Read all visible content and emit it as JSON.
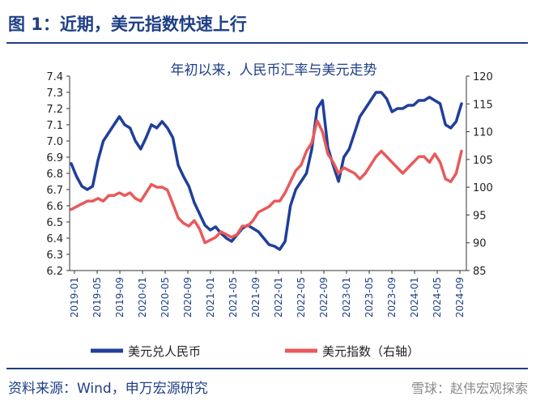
{
  "header": {
    "title": "图 1：近期，美元指数快速上行"
  },
  "footer": {
    "source": "资料来源：Wind，申万宏源研究",
    "watermark": "雪球：赵伟宏观探索"
  },
  "chart_data": {
    "type": "line",
    "title": "年初以来，人民币汇率与美元走势",
    "x_ticks": [
      "2019-01",
      "2019-05",
      "2019-09",
      "2020-01",
      "2020-05",
      "2020-09",
      "2021-01",
      "2021-05",
      "2021-09",
      "2022-01",
      "2022-05",
      "2022-09",
      "2023-01",
      "2023-05",
      "2023-09",
      "2024-01",
      "2024-05",
      "2024-09"
    ],
    "y_left": {
      "ticks": [
        "7.4",
        "7.3",
        "7.2",
        "7.1",
        "7.0",
        "6.9",
        "6.8",
        "6.7",
        "6.6",
        "6.5",
        "6.4",
        "6.3",
        "6.2"
      ],
      "min": 6.2,
      "max": 7.4
    },
    "y_right": {
      "ticks": [
        "120",
        "115",
        "110",
        "105",
        "100",
        "95",
        "90",
        "85"
      ],
      "min": 85,
      "max": 120
    },
    "series": [
      {
        "name": "美元兑人民币",
        "axis": "left",
        "color": "#1f3f9a",
        "points": [
          [
            0,
            6.86
          ],
          [
            1,
            6.78
          ],
          [
            2,
            6.72
          ],
          [
            3,
            6.7
          ],
          [
            4,
            6.72
          ],
          [
            5,
            6.88
          ],
          [
            6,
            7.0
          ],
          [
            7,
            7.05
          ],
          [
            8,
            7.1
          ],
          [
            9,
            7.15
          ],
          [
            10,
            7.1
          ],
          [
            11,
            7.08
          ],
          [
            12,
            7.0
          ],
          [
            13,
            6.95
          ],
          [
            14,
            7.02
          ],
          [
            15,
            7.1
          ],
          [
            16,
            7.08
          ],
          [
            17,
            7.12
          ],
          [
            18,
            7.08
          ],
          [
            19,
            7.02
          ],
          [
            20,
            6.85
          ],
          [
            21,
            6.78
          ],
          [
            22,
            6.72
          ],
          [
            23,
            6.62
          ],
          [
            24,
            6.55
          ],
          [
            25,
            6.48
          ],
          [
            26,
            6.45
          ],
          [
            27,
            6.47
          ],
          [
            28,
            6.43
          ],
          [
            29,
            6.4
          ],
          [
            30,
            6.38
          ],
          [
            31,
            6.42
          ],
          [
            32,
            6.46
          ],
          [
            33,
            6.48
          ],
          [
            34,
            6.46
          ],
          [
            35,
            6.44
          ],
          [
            36,
            6.4
          ],
          [
            37,
            6.36
          ],
          [
            38,
            6.35
          ],
          [
            39,
            6.33
          ],
          [
            40,
            6.38
          ],
          [
            41,
            6.6
          ],
          [
            42,
            6.7
          ],
          [
            43,
            6.75
          ],
          [
            44,
            6.8
          ],
          [
            45,
            6.95
          ],
          [
            46,
            7.2
          ],
          [
            47,
            7.25
          ],
          [
            48,
            6.96
          ],
          [
            49,
            6.85
          ],
          [
            50,
            6.75
          ],
          [
            51,
            6.9
          ],
          [
            52,
            6.95
          ],
          [
            53,
            7.05
          ],
          [
            54,
            7.15
          ],
          [
            55,
            7.2
          ],
          [
            56,
            7.25
          ],
          [
            57,
            7.3
          ],
          [
            58,
            7.3
          ],
          [
            59,
            7.26
          ],
          [
            60,
            7.18
          ],
          [
            61,
            7.2
          ],
          [
            62,
            7.2
          ],
          [
            63,
            7.22
          ],
          [
            64,
            7.22
          ],
          [
            65,
            7.25
          ],
          [
            66,
            7.25
          ],
          [
            67,
            7.27
          ],
          [
            68,
            7.25
          ],
          [
            69,
            7.23
          ],
          [
            70,
            7.1
          ],
          [
            71,
            7.08
          ],
          [
            72,
            7.12
          ],
          [
            73,
            7.23
          ]
        ]
      },
      {
        "name": "美元指数（右轴）",
        "axis": "right",
        "color": "#e85a5a",
        "points": [
          [
            0,
            96.0
          ],
          [
            1,
            96.5
          ],
          [
            2,
            97.0
          ],
          [
            3,
            97.5
          ],
          [
            4,
            97.5
          ],
          [
            5,
            98.0
          ],
          [
            6,
            97.5
          ],
          [
            7,
            98.5
          ],
          [
            8,
            98.5
          ],
          [
            9,
            99.0
          ],
          [
            10,
            98.5
          ],
          [
            11,
            99.0
          ],
          [
            12,
            98.0
          ],
          [
            13,
            97.5
          ],
          [
            14,
            99.0
          ],
          [
            15,
            100.5
          ],
          [
            16,
            100.0
          ],
          [
            17,
            100.0
          ],
          [
            18,
            99.5
          ],
          [
            19,
            97.0
          ],
          [
            20,
            94.5
          ],
          [
            21,
            93.5
          ],
          [
            22,
            93.0
          ],
          [
            23,
            94.0
          ],
          [
            24,
            92.5
          ],
          [
            25,
            90.0
          ],
          [
            26,
            90.5
          ],
          [
            27,
            91.0
          ],
          [
            28,
            92.0
          ],
          [
            29,
            91.5
          ],
          [
            30,
            91.0
          ],
          [
            31,
            91.5
          ],
          [
            32,
            93.0
          ],
          [
            33,
            93.0
          ],
          [
            34,
            94.0
          ],
          [
            35,
            95.5
          ],
          [
            36,
            96.0
          ],
          [
            37,
            96.5
          ],
          [
            38,
            97.5
          ],
          [
            39,
            97.5
          ],
          [
            40,
            99.0
          ],
          [
            41,
            101.0
          ],
          [
            42,
            103.0
          ],
          [
            43,
            104.0
          ],
          [
            44,
            106.5
          ],
          [
            45,
            108.0
          ],
          [
            46,
            112.0
          ],
          [
            47,
            110.0
          ],
          [
            48,
            106.0
          ],
          [
            49,
            104.5
          ],
          [
            50,
            102.5
          ],
          [
            51,
            103.5
          ],
          [
            52,
            103.0
          ],
          [
            53,
            102.5
          ],
          [
            54,
            101.5
          ],
          [
            55,
            102.5
          ],
          [
            56,
            104.0
          ],
          [
            57,
            105.5
          ],
          [
            58,
            106.5
          ],
          [
            59,
            105.5
          ],
          [
            60,
            104.5
          ],
          [
            61,
            103.5
          ],
          [
            62,
            102.5
          ],
          [
            63,
            103.5
          ],
          [
            64,
            104.5
          ],
          [
            65,
            105.5
          ],
          [
            66,
            105.5
          ],
          [
            67,
            104.5
          ],
          [
            68,
            106.0
          ],
          [
            69,
            104.5
          ],
          [
            70,
            101.5
          ],
          [
            71,
            101.0
          ],
          [
            72,
            102.5
          ],
          [
            73,
            106.5
          ]
        ]
      }
    ],
    "legend_position": "bottom"
  }
}
